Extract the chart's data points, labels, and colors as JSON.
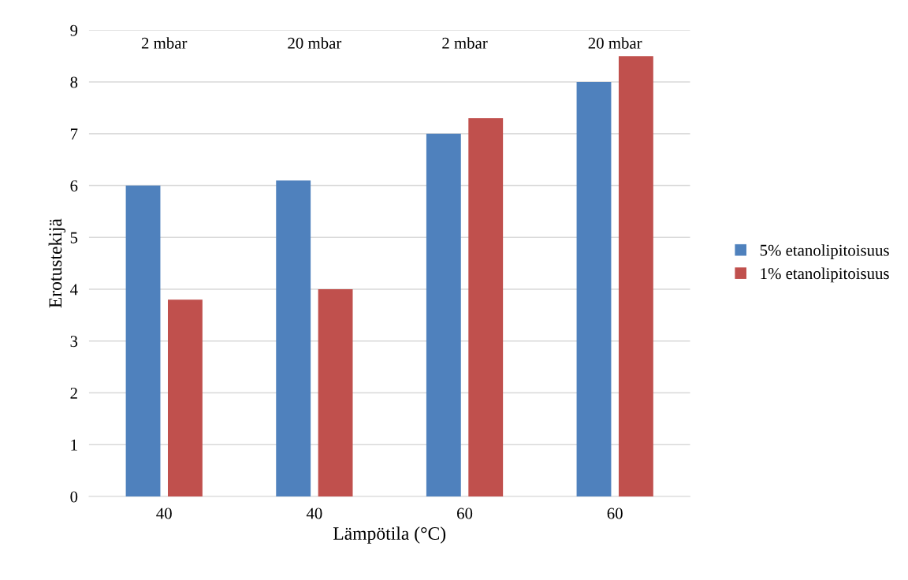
{
  "chart_data": {
    "type": "bar",
    "xlabel": "Lämpötila (°C)",
    "ylabel": "Erotustekijä",
    "categories": [
      "40",
      "40",
      "60",
      "60"
    ],
    "series": [
      {
        "name": "5% etanolipitoisuus",
        "color": "#4f81bd",
        "values": [
          6.0,
          6.1,
          7.0,
          8.0
        ]
      },
      {
        "name": "1% etanolipitoisuus",
        "color": "#c0504d",
        "values": [
          3.8,
          4.0,
          7.3,
          8.5
        ]
      }
    ],
    "annotations": [
      "2 mbar",
      "20 mbar",
      "2 mbar",
      "20 mbar"
    ],
    "ylim": [
      0,
      9
    ],
    "yticks": [
      0,
      1,
      2,
      3,
      4,
      5,
      6,
      7,
      8,
      9
    ],
    "grid": "y",
    "legend": "right"
  }
}
